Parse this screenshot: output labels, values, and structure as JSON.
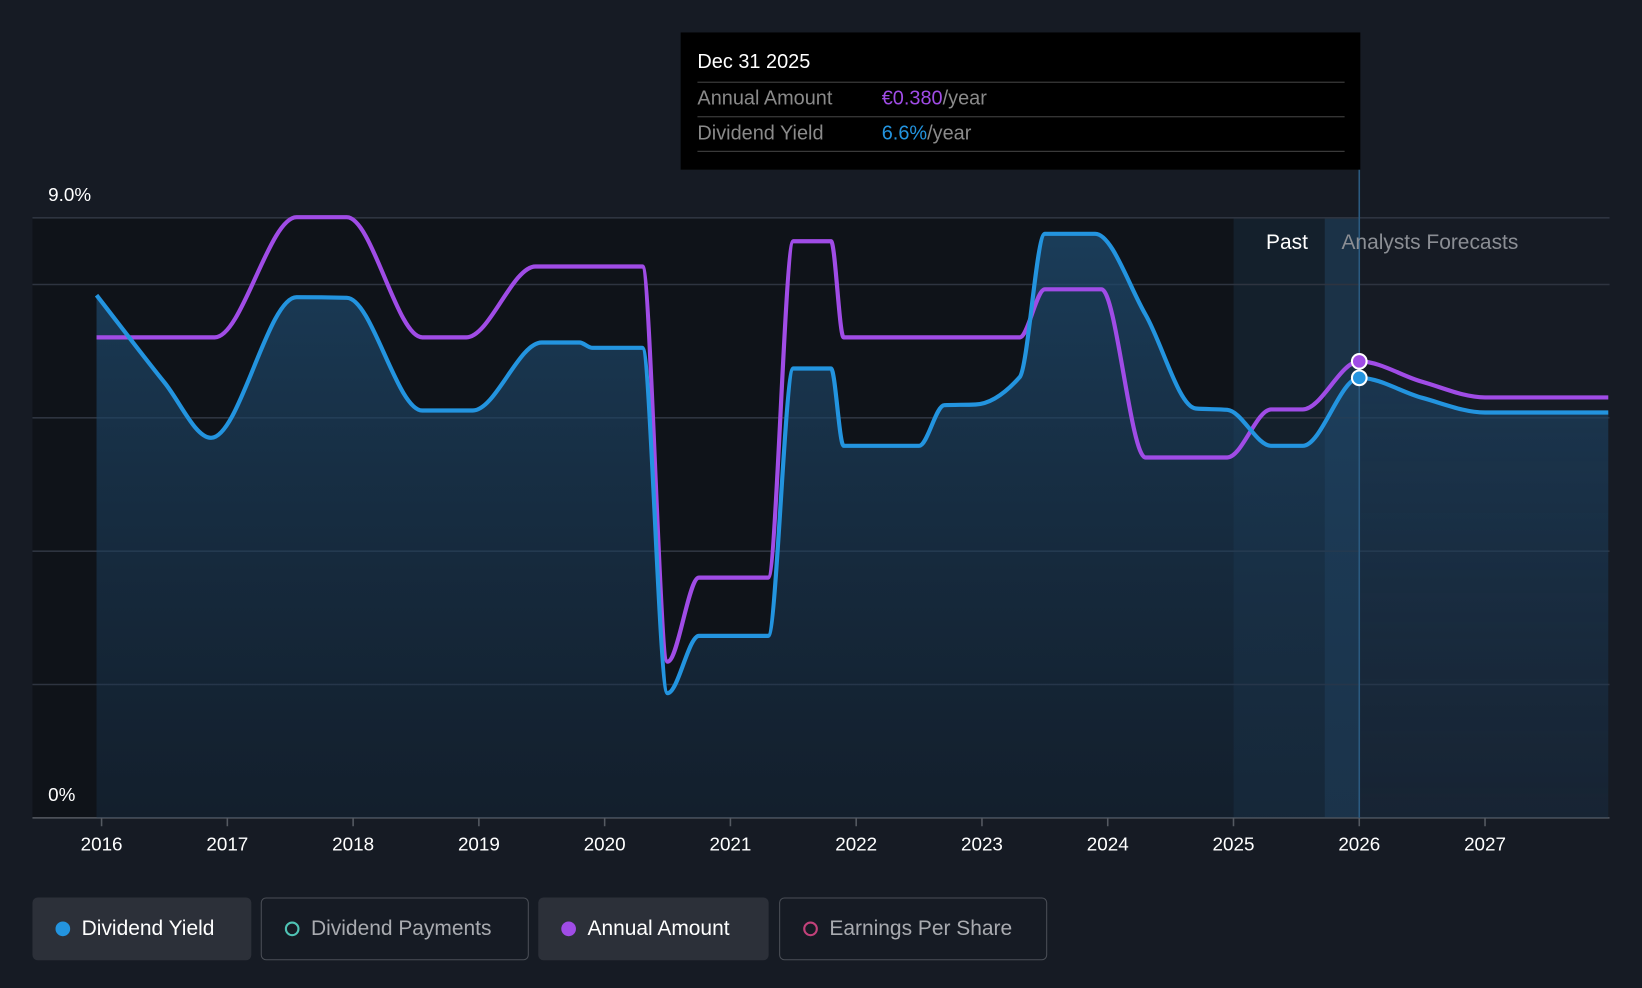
{
  "chart_data": {
    "type": "line",
    "ylabel_ticks": [
      "9.0%",
      "0%"
    ],
    "ylim_percent": [
      0,
      9
    ],
    "amount_scale_max_eur": 0.4995,
    "xlim_years": [
      2015.5,
      2027.98
    ],
    "x_ticks": [
      "2016",
      "2017",
      "2018",
      "2019",
      "2020",
      "2021",
      "2022",
      "2023",
      "2024",
      "2025",
      "2026",
      "2027"
    ],
    "regions": {
      "past_label": "Past",
      "forecast_label": "Analysts Forecasts",
      "past_start": 2025.0,
      "now": 2026.0
    },
    "series": [
      {
        "name": "Dividend Yield",
        "unit": "%",
        "color": "#2394df",
        "x": [
          2015.96,
          2016.5,
          2016.87,
          2017.55,
          2017.95,
          2018.55,
          2018.95,
          2019.5,
          2019.8,
          2019.9,
          2020.3,
          2020.5,
          2020.75,
          2021.3,
          2021.5,
          2021.8,
          2021.9,
          2022.5,
          2022.7,
          2022.95,
          2023.3,
          2023.5,
          2023.9,
          2024.3,
          2024.7,
          2024.95,
          2025.3,
          2025.55,
          2026.0,
          2026.5,
          2027.0,
          2027.98
        ],
        "values": [
          7.84,
          6.53,
          5.7,
          7.81,
          7.8,
          6.11,
          6.11,
          7.13,
          7.13,
          7.05,
          7.05,
          1.87,
          2.73,
          2.73,
          6.74,
          6.74,
          5.58,
          5.58,
          6.19,
          6.2,
          6.61,
          8.76,
          8.76,
          7.55,
          6.14,
          6.12,
          5.58,
          5.58,
          6.6,
          6.3,
          6.08,
          6.08
        ]
      },
      {
        "name": "Annual Amount",
        "unit": "EUR",
        "color": "#a04ce6",
        "x": [
          2015.96,
          2016.9,
          2017.55,
          2017.95,
          2018.55,
          2018.9,
          2019.45,
          2020.3,
          2020.5,
          2020.75,
          2021.3,
          2021.5,
          2021.8,
          2021.9,
          2023.3,
          2023.5,
          2023.95,
          2024.3,
          2024.95,
          2025.3,
          2025.55,
          2026.0,
          2026.5,
          2027.0,
          2027.98
        ],
        "values": [
          0.4,
          0.4,
          0.5,
          0.5,
          0.4,
          0.4,
          0.459,
          0.459,
          0.13,
          0.2,
          0.2,
          0.48,
          0.48,
          0.4,
          0.4,
          0.44,
          0.44,
          0.3,
          0.3,
          0.34,
          0.34,
          0.38,
          0.363,
          0.35,
          0.35
        ]
      }
    ]
  },
  "tooltip": {
    "date": "Dec 31 2025",
    "rows": [
      {
        "label": "Annual Amount",
        "value": "€0.380",
        "suffix": "/year",
        "color": "#a04ce6"
      },
      {
        "label": "Dividend Yield",
        "value": "6.6%",
        "suffix": "/year",
        "color": "#2394df"
      }
    ]
  },
  "legend": [
    {
      "label": "Dividend Yield",
      "color": "#2394df",
      "active": true
    },
    {
      "label": "Dividend Payments",
      "color": "#4fc3b5",
      "active": false
    },
    {
      "label": "Annual Amount",
      "color": "#a04ce6",
      "active": true
    },
    {
      "label": "Earnings Per Share",
      "color": "#c2417a",
      "active": false
    }
  ]
}
